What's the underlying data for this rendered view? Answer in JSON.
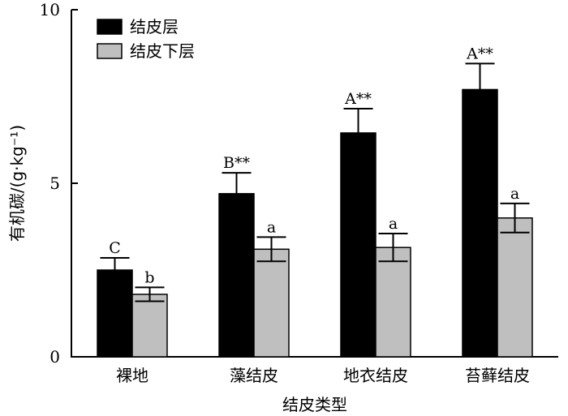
{
  "chart_data": {
    "type": "bar",
    "title": "",
    "xlabel": "结皮类型",
    "ylabel": "有机碳/(g·kg⁻¹)",
    "ylim": [
      0,
      10
    ],
    "yticks": [
      0,
      5,
      10
    ],
    "categories": [
      "裸地",
      "藻结皮",
      "地衣结皮",
      "苔藓结皮"
    ],
    "series": [
      {
        "name": "结皮层",
        "color": "#000000",
        "values": [
          2.5,
          4.7,
          6.45,
          7.7
        ],
        "errors": [
          0.35,
          0.6,
          0.7,
          0.75
        ],
        "labels": [
          "C",
          "B**",
          "A**",
          "A**"
        ]
      },
      {
        "name": "结皮下层",
        "color": "#bfbfbf",
        "values": [
          1.8,
          3.1,
          3.15,
          4.0
        ],
        "errors": [
          0.2,
          0.35,
          0.4,
          0.42
        ],
        "labels": [
          "b",
          "a",
          "a",
          "a"
        ]
      }
    ],
    "legend_position": "top-left",
    "grid": false
  }
}
